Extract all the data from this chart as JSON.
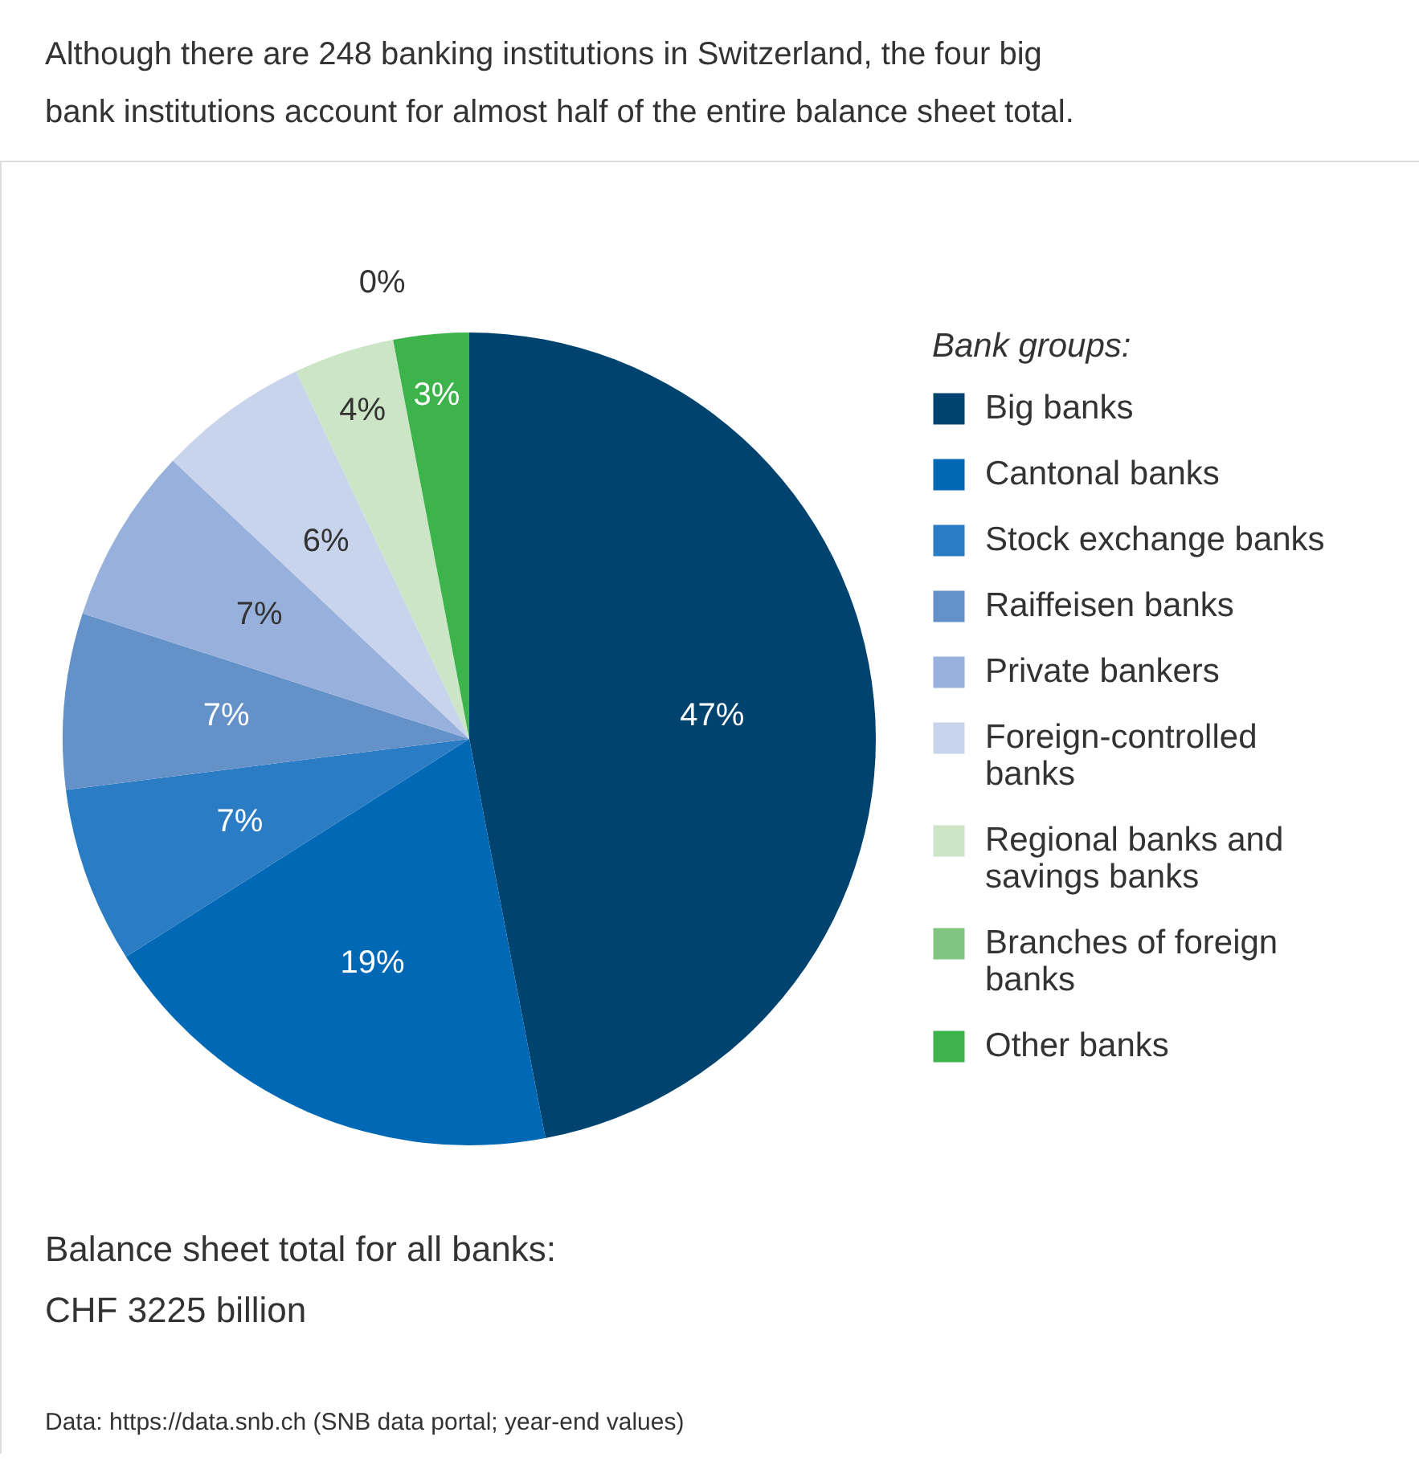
{
  "chart_data": {
    "type": "pie",
    "title": "Although there are 248 banking institutions in Switzerland, the four big bank institutions account for almost half of the entire balance sheet total.",
    "legend_title": "Bank groups:",
    "categories": [
      "Big banks",
      "Cantonal banks",
      "Stock exchange banks",
      "Raiffeisen banks",
      "Private bankers",
      "Foreign-controlled banks",
      "Regional banks and savings banks",
      "Branches of foreign banks",
      "Other banks"
    ],
    "values": [
      47,
      19,
      7,
      7,
      7,
      6,
      4,
      0,
      3
    ],
    "colors": [
      "#00436e",
      "#0068b4",
      "#2a7cc4",
      "#6591c9",
      "#97b1dc",
      "#c7d4ec",
      "#cbe5c6",
      "#80c580",
      "#3cb34b"
    ],
    "value_labels": [
      "47%",
      "19%",
      "7%",
      "7%",
      "7%",
      "6%",
      "4%",
      "0%",
      "3%"
    ],
    "legend": "right",
    "annotations": [
      "Balance sheet total for all banks: CHF 3225 billion",
      "Data: https://data.snb.ch (SNB data portal; year-end values)"
    ]
  }
}
